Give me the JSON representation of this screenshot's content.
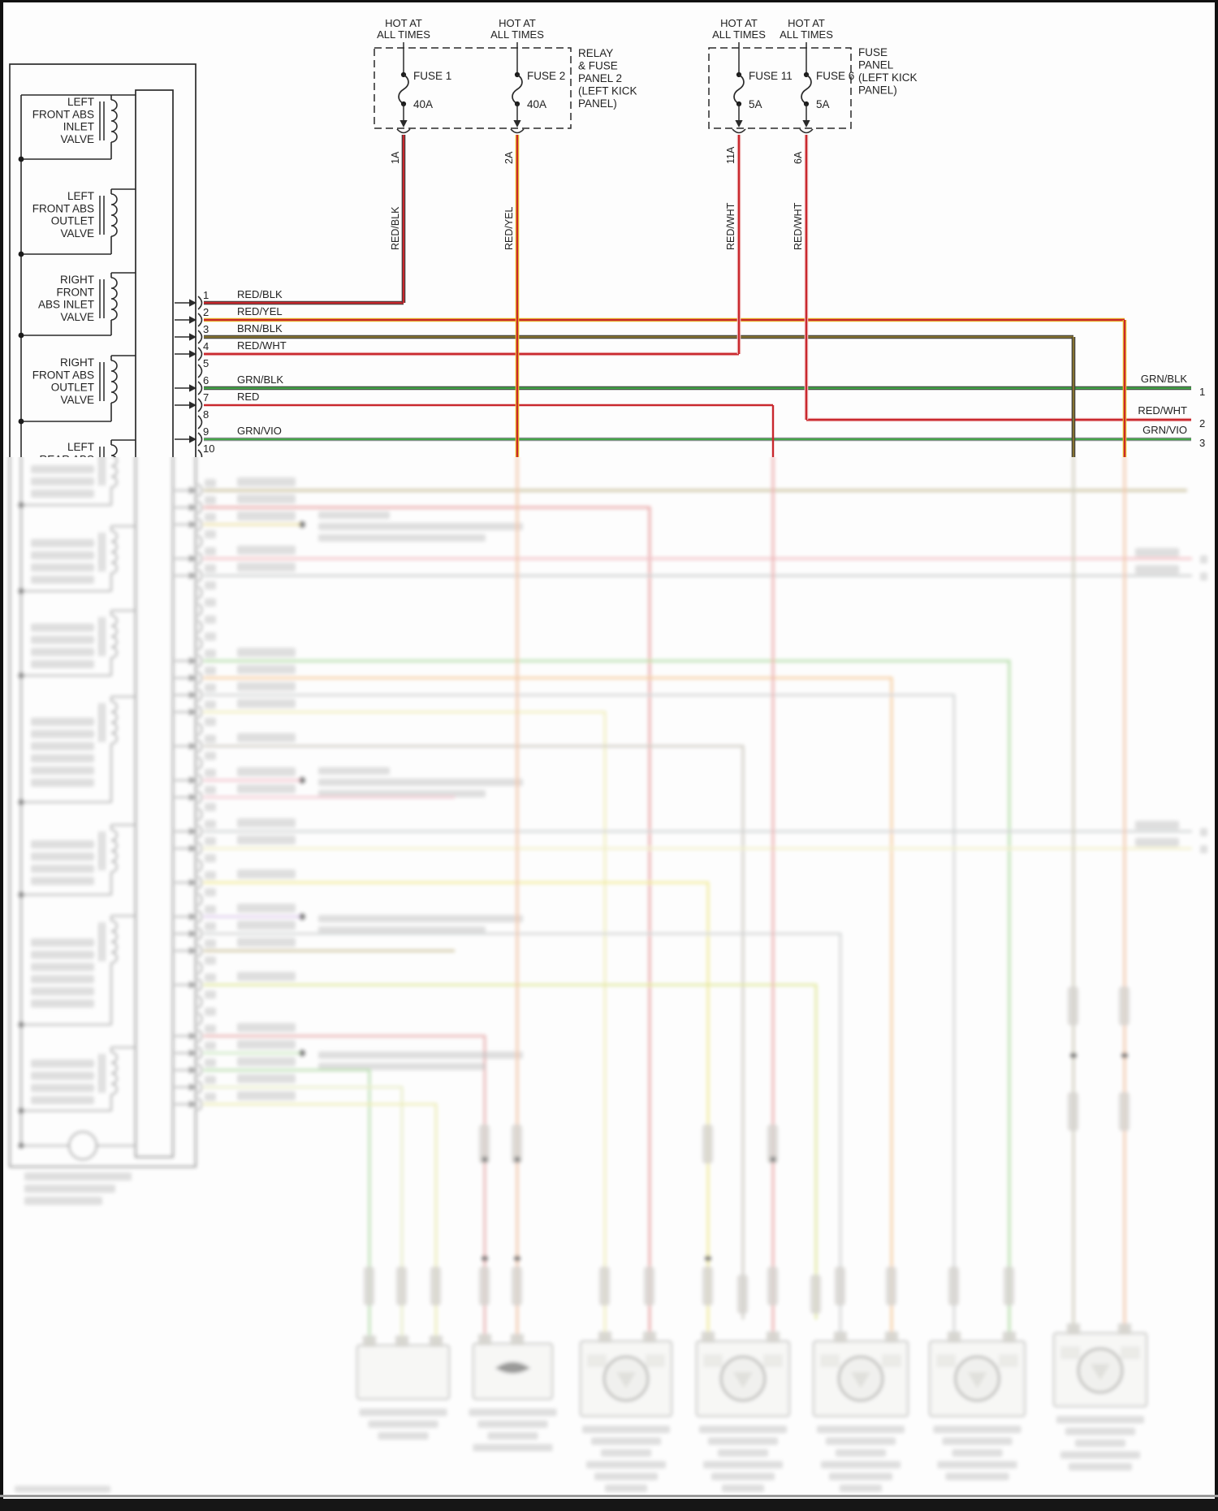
{
  "diagram": {
    "hot_label_line1": "HOT AT",
    "hot_label_line2": "ALL TIMES",
    "panels": [
      {
        "label_lines": [
          "RELAY",
          "& FUSE",
          "PANEL 2",
          "(LEFT KICK",
          "PANEL)"
        ]
      },
      {
        "label_lines": [
          "FUSE",
          "PANEL",
          "(LEFT KICK",
          "PANEL)"
        ]
      }
    ],
    "fuses": [
      {
        "name": "FUSE 1",
        "rating": "40A",
        "connector_pin": "1A",
        "wire_color": "RED/BLK"
      },
      {
        "name": "FUSE 2",
        "rating": "40A",
        "connector_pin": "2A",
        "wire_color": "RED/YEL"
      },
      {
        "name": "FUSE 11",
        "rating": "5A",
        "connector_pin": "11A",
        "wire_color": "RED/WHT"
      },
      {
        "name": "FUSE 6",
        "rating": "5A",
        "connector_pin": "6A",
        "wire_color": "RED/WHT"
      }
    ],
    "valves": [
      {
        "lines": [
          "LEFT",
          "FRONT ABS",
          "INLET",
          "VALVE"
        ]
      },
      {
        "lines": [
          "LEFT",
          "FRONT ABS",
          "OUTLET",
          "VALVE"
        ]
      },
      {
        "lines": [
          "RIGHT",
          "FRONT",
          "ABS INLET",
          "VALVE"
        ]
      },
      {
        "lines": [
          "RIGHT",
          "FRONT ABS",
          "OUTLET",
          "VALVE"
        ]
      },
      {
        "lines": [
          "LEFT",
          "REAR ABS"
        ]
      }
    ],
    "pins": [
      {
        "number": "1",
        "wire": "RED/BLK"
      },
      {
        "number": "2",
        "wire": "RED/YEL"
      },
      {
        "number": "3",
        "wire": "BRN/BLK"
      },
      {
        "number": "4",
        "wire": "RED/WHT"
      },
      {
        "number": "5",
        "wire": ""
      },
      {
        "number": "6",
        "wire": "GRN/BLK"
      },
      {
        "number": "7",
        "wire": "RED"
      },
      {
        "number": "8",
        "wire": ""
      },
      {
        "number": "9",
        "wire": "GRN/VIO"
      },
      {
        "number": "10",
        "wire": ""
      }
    ],
    "exits": [
      {
        "wire": "GRN/BLK",
        "number": "1"
      },
      {
        "wire": "RED/WHT",
        "number": "2"
      },
      {
        "wire": "GRN/VIO",
        "number": "3"
      }
    ],
    "colors": {
      "red": "#c9282e",
      "yellow": "#edc928",
      "green": "#43a447",
      "black_stripe": "#3a3a3a",
      "brown": "#857231",
      "violet": "#9d90a5",
      "white_stripe": "#f2c6c6",
      "line": "#2a2a2a"
    }
  }
}
